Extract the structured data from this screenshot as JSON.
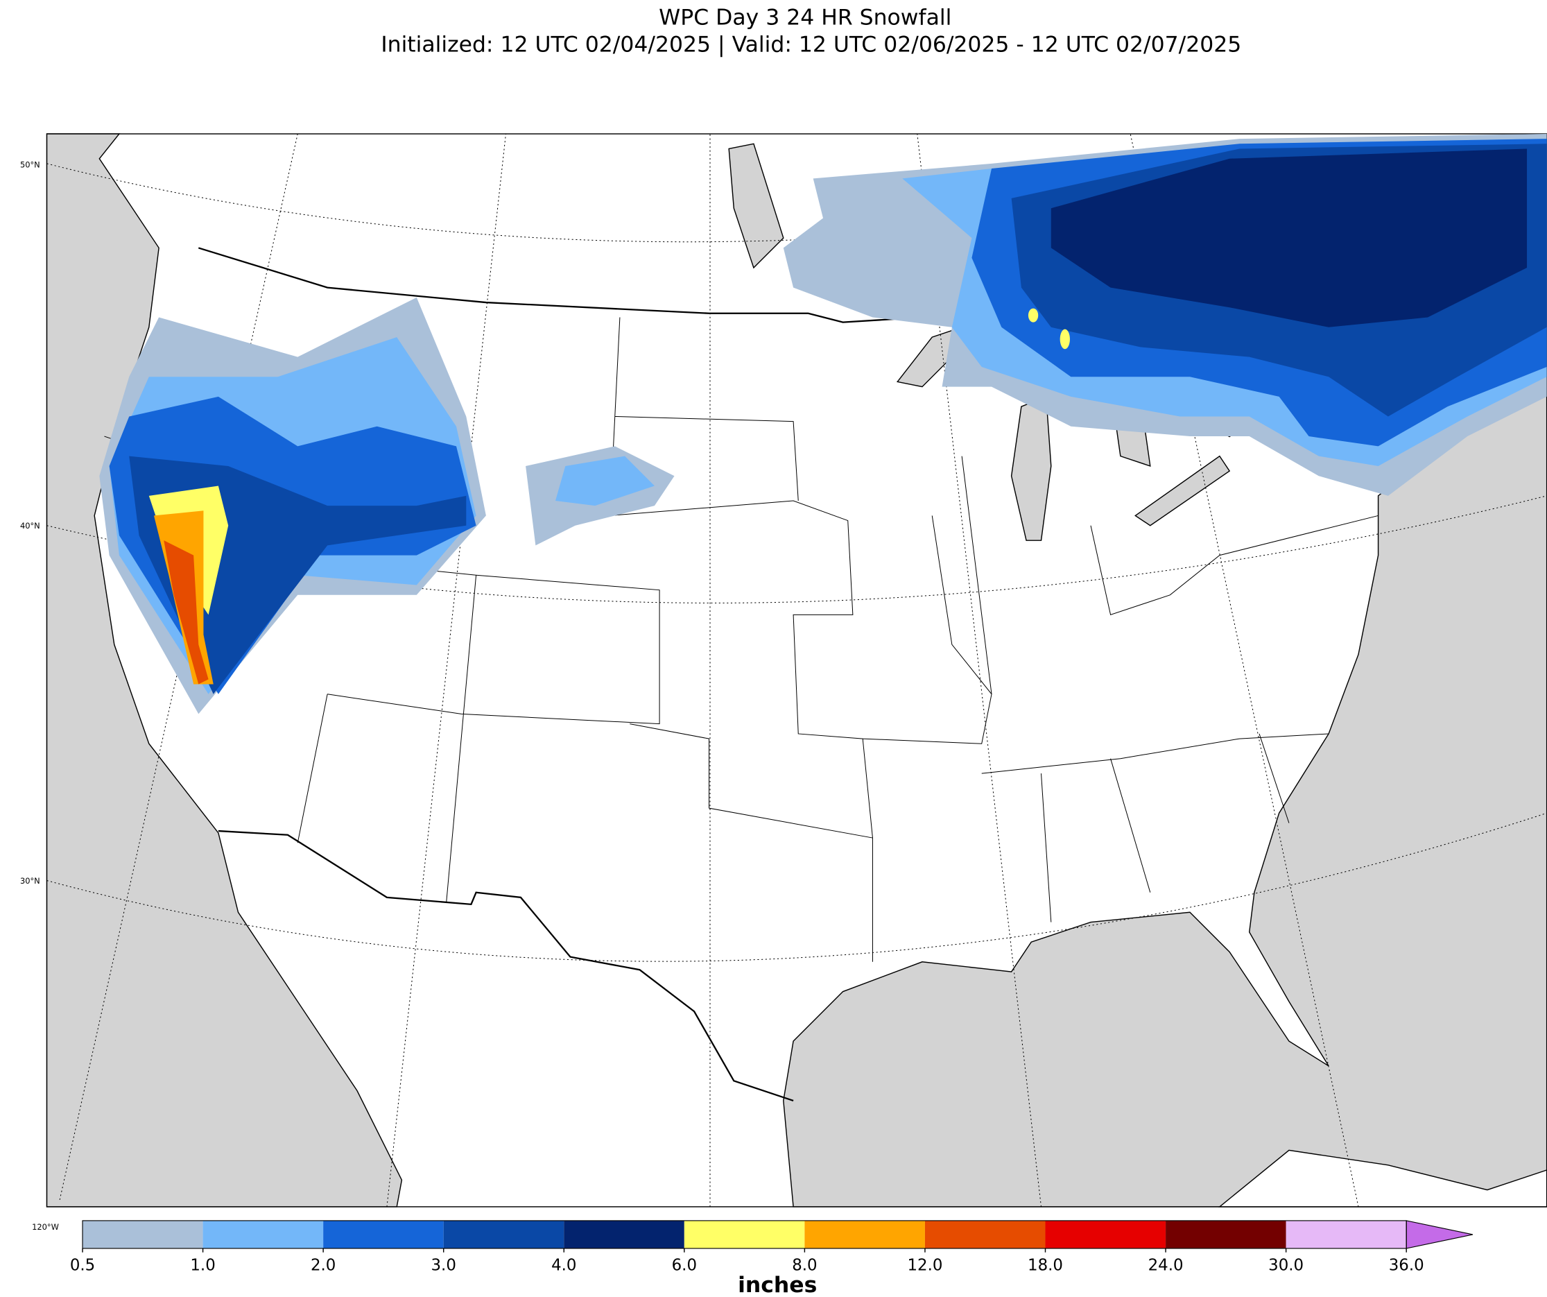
{
  "header": {
    "title": "WPC Day 3 24 HR Snowfall",
    "subtitle": "Initialized: 12 UTC 02/04/2025 | Valid: 12 UTC 02/06/2025 - 12 UTC 02/07/2025"
  },
  "map": {
    "graticule_labels": [
      "50°N",
      "40°N",
      "30°N",
      "120°W"
    ]
  },
  "colorbar": {
    "label": "inches",
    "ticks": [
      0.5,
      {
        "value": 1,
        "label": "1.0"
      },
      {
        "value": 2,
        "label": "2.0"
      },
      {
        "value": 3,
        "label": "3.0"
      },
      {
        "value": 4,
        "label": "4.0"
      },
      {
        "value": 6,
        "label": "6.0"
      },
      {
        "value": 8,
        "label": "8.0"
      },
      {
        "value": 12,
        "label": "12.0"
      },
      {
        "value": 18,
        "label": "18.0"
      },
      {
        "value": 24,
        "label": "24.0"
      },
      {
        "value": 30,
        "label": "30.0"
      },
      {
        "value": 36,
        "label": "36.0"
      }
    ],
    "colors": [
      "#aac0d9",
      "#73b7f9",
      "#1565d8",
      "#0a48a6",
      "#03236e",
      "#ffff66",
      "#ffa500",
      "#e64c00",
      "#e60000",
      "#730000",
      "#e6b9f7",
      "#c46be8"
    ]
  }
}
